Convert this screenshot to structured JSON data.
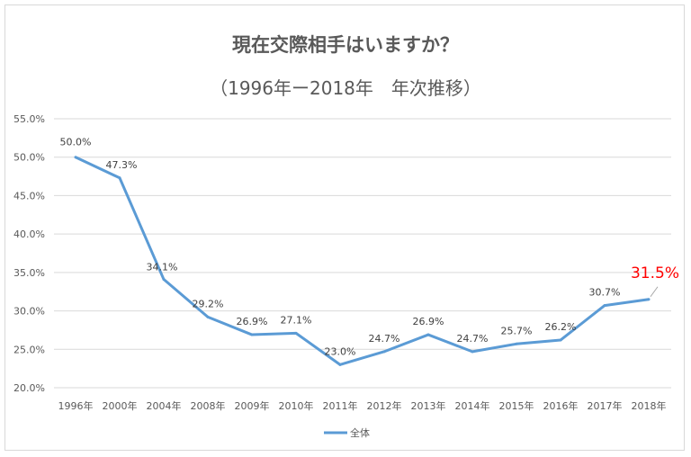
{
  "chart_data": {
    "type": "line",
    "title": "現在交際相手はいますか？",
    "subtitle": "（1996年ー2018年　年次推移）",
    "categories": [
      "1996年",
      "2000年",
      "2004年",
      "2008年",
      "2009年",
      "2010年",
      "2011年",
      "2012年",
      "2013年",
      "2014年",
      "2015年",
      "2016年",
      "2017年",
      "2018年"
    ],
    "series": [
      {
        "name": "全体",
        "values": [
          50.0,
          47.3,
          34.1,
          29.2,
          26.9,
          27.1,
          23.0,
          24.7,
          26.9,
          24.7,
          25.7,
          26.2,
          30.7,
          31.5
        ],
        "color": "#5b9bd5"
      }
    ],
    "data_labels": [
      "50.0%",
      "47.3%",
      "34.1%",
      "29.2%",
      "26.9%",
      "27.1%",
      "23.0%",
      "24.7%",
      "26.9%",
      "24.7%",
      "25.7%",
      "26.2%",
      "30.7%",
      "31.5%"
    ],
    "highlight_label_color": "#ff0000",
    "yticks": [
      "20.0%",
      "25.0%",
      "30.0%",
      "35.0%",
      "40.0%",
      "45.0%",
      "50.0%",
      "55.0%"
    ],
    "ylim": [
      20,
      55
    ],
    "grid": true,
    "legend": "bottom"
  }
}
